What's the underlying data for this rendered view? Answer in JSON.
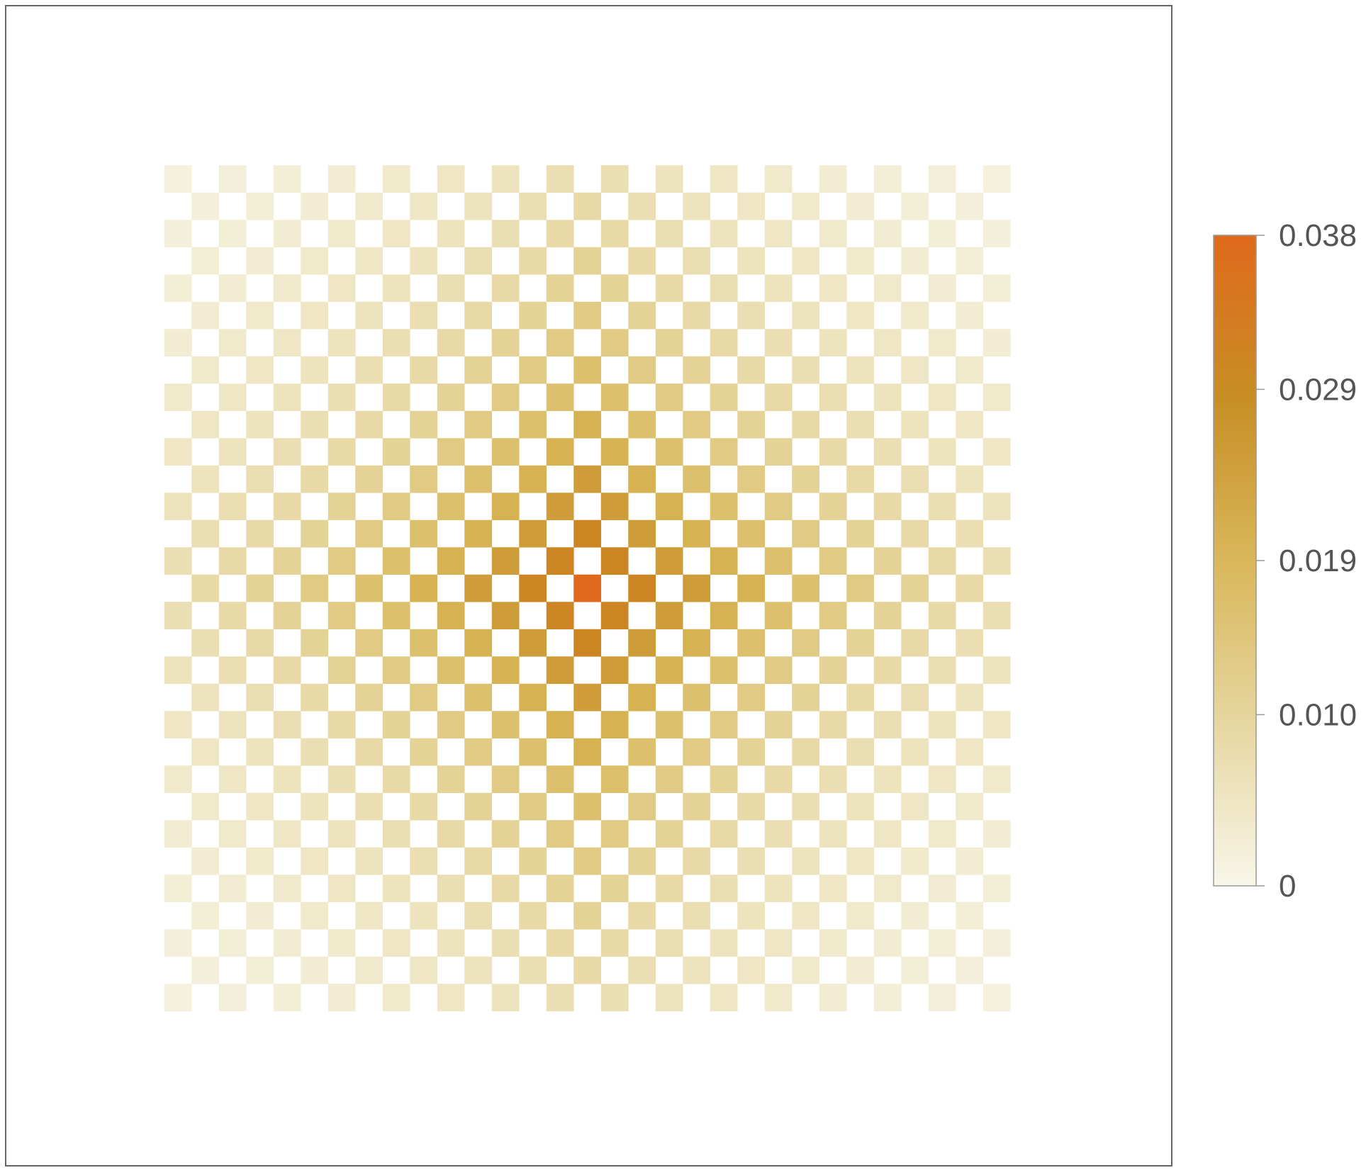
{
  "chart_data": {
    "type": "heatmap",
    "title": "",
    "xlabel": "",
    "ylabel": "",
    "grid": false,
    "description_of_pattern": "checkerboard diamond; nonzero cells where |i|+|j| is even and |i|+|j| <= 30",
    "grid_extent": {
      "i_range": [
        -15,
        15
      ],
      "j_range": [
        -15,
        15
      ]
    },
    "value_model": {
      "peak": 0.038,
      "decay_scale": 9.5,
      "floor": 0.001
    },
    "colorbar": {
      "min": 0,
      "max": 0.038,
      "ticks": [
        0,
        0.01,
        0.019,
        0.029,
        0.038
      ],
      "tick_labels": [
        "0",
        "0.010",
        "0.019",
        "0.029",
        "0.038"
      ],
      "colors": [
        "#f8f6e9",
        "#e6d6a0",
        "#d9b75a",
        "#c78e25",
        "#e0691c"
      ],
      "placement": "right"
    }
  }
}
